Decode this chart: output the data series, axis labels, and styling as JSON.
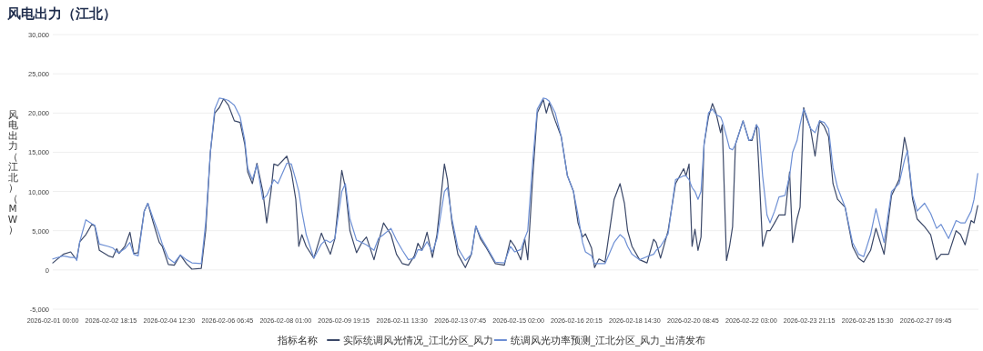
{
  "chart_data": {
    "type": "line",
    "title": "风电出力（江北）",
    "ylabel": "风电出力（江北）（MW）",
    "legend_title": "指标名称",
    "x": [
      "2026-02-01T00:00",
      "2026-02-01T07:36",
      "2026-02-01T13:00",
      "2026-02-01T16:18",
      "2026-02-01T17:24",
      "2026-02-01T19:36",
      "2026-02-02T00:00",
      "2026-02-02T04:18",
      "2026-02-02T06:30",
      "2026-02-02T09:48",
      "2026-02-02T16:18",
      "2026-02-02T19:36",
      "2026-02-02T22:24",
      "2026-02-03T00:00",
      "2026-02-03T04:18",
      "2026-02-03T08:00",
      "2026-02-03T10:48",
      "2026-02-03T14:00",
      "2026-02-03T18:24",
      "2026-02-03T21:00",
      "2026-02-04T01:00",
      "2026-02-04T05:18",
      "2026-02-04T07:30",
      "2026-02-04T11:54",
      "2026-02-04T16:12",
      "2026-02-04T20:36",
      "2026-02-05T01:00",
      "2026-02-05T05:00",
      "2026-02-05T11:48",
      "2026-02-05T15:00",
      "2026-02-05T18:24",
      "2026-02-05T21:36",
      "2026-02-06T00:54",
      "2026-02-06T04:00",
      "2026-02-06T07:30",
      "2026-02-06T11:48",
      "2026-02-06T16:00",
      "2026-02-06T19:24",
      "2026-02-06T21:30",
      "2026-02-07T00:54",
      "2026-02-07T04:12",
      "2026-02-07T08:30",
      "2026-02-07T11:18",
      "2026-02-07T14:24",
      "2026-02-07T16:30",
      "2026-02-07T19:24",
      "2026-02-08T01:54",
      "2026-02-08T05:12",
      "2026-02-08T08:24",
      "2026-02-08T10:36",
      "2026-02-08T12:48",
      "2026-02-08T16:00",
      "2026-02-08T21:30",
      "2026-02-09T03:00",
      "2026-02-09T06:12",
      "2026-02-09T09:30",
      "2026-02-09T12:48",
      "2026-02-09T17:48",
      "2026-02-09T20:24",
      "2026-02-09T23:42",
      "2026-02-10T04:30",
      "2026-02-10T08:24",
      "2026-02-10T11:42",
      "2026-02-10T17:12",
      "2026-02-10T20:24",
      "2026-02-11T00:06",
      "2026-02-11T05:30",
      "2026-02-11T09:30",
      "2026-02-11T13:48",
      "2026-02-11T18:12",
      "2026-02-11T22:30",
      "2026-02-12T01:06",
      "2026-02-12T04:00",
      "2026-02-12T07:42",
      "2026-02-12T11:36",
      "2026-02-12T14:54",
      "2026-02-12T20:18",
      "2026-02-12T22:30",
      "2026-02-13T01:48",
      "2026-02-13T06:06",
      "2026-02-13T11:30",
      "2026-02-13T15:54",
      "2026-02-13T19:06",
      "2026-02-13T22:24",
      "2026-02-14T02:48",
      "2026-02-14T09:18",
      "2026-02-14T15:48",
      "2026-02-14T20:12",
      "2026-02-14T23:24",
      "2026-02-15T03:48",
      "2026-02-15T06:36",
      "2026-02-15T08:48",
      "2026-02-15T12:30",
      "2026-02-15T15:42",
      "2026-02-15T20:06",
      "2026-02-15T22:18",
      "2026-02-16T00:24",
      "2026-02-16T04:48",
      "2026-02-16T09:06",
      "2026-02-16T13:36",
      "2026-02-16T18:00",
      "2026-02-16T21:18",
      "2026-02-17T00:36",
      "2026-02-17T02:42",
      "2026-02-17T07:06",
      "2026-02-17T09:18",
      "2026-02-17T12:30",
      "2026-02-17T16:54",
      "2026-02-17T23:30",
      "2026-02-18T03:48",
      "2026-02-18T07:00",
      "2026-02-18T09:18",
      "2026-02-18T12:30",
      "2026-02-18T18:00",
      "2026-02-18T23:24",
      "2026-02-19T04:12",
      "2026-02-19T06:00",
      "2026-02-19T09:12",
      "2026-02-19T14:42",
      "2026-02-19T20:06",
      "2026-02-20T02:00",
      "2026-02-20T03:42",
      "2026-02-20T05:54",
      "2026-02-20T08:06",
      "2026-02-20T10:12",
      "2026-02-20T12:24",
      "2026-02-20T14:36",
      "2026-02-20T16:48",
      "2026-02-20T20:00",
      "2026-02-20T22:54",
      "2026-02-21T01:30",
      "2026-02-21T04:48",
      "2026-02-21T06:00",
      "2026-02-21T09:06",
      "2026-02-21T11:18",
      "2026-02-21T13:30",
      "2026-02-21T15:36",
      "2026-02-21T21:06",
      "2026-02-22T01:24",
      "2026-02-22T03:36",
      "2026-02-22T06:54",
      "2026-02-22T08:36",
      "2026-02-22T11:18",
      "2026-02-22T14:30",
      "2026-02-22T16:42",
      "2026-02-22T20:00",
      "2026-02-22T23:12",
      "2026-02-23T03:36",
      "2026-02-23T06:54",
      "2026-02-23T09:06",
      "2026-02-23T12:18",
      "2026-02-23T14:30",
      "2026-02-23T17:06",
      "2026-02-23T18:54",
      "2026-02-23T22:06",
      "2026-02-24T01:24",
      "2026-02-24T04:42",
      "2026-02-24T08:00",
      "2026-02-24T11:12",
      "2026-02-24T14:24",
      "2026-02-24T17:42",
      "2026-02-24T23:12",
      "2026-02-25T04:36",
      "2026-02-25T09:00",
      "2026-02-25T12:42",
      "2026-02-25T17:42",
      "2026-02-25T21:36",
      "2026-02-26T03:30",
      "2026-02-26T08:54",
      "2026-02-26T14:24",
      "2026-02-26T18:18",
      "2026-02-26T20:30",
      "2026-02-27T00:12",
      "2026-02-27T03:30",
      "2026-02-27T08:54",
      "2026-02-27T13:18",
      "2026-02-27T17:36",
      "2026-02-27T20:54",
      "2026-02-28T02:18",
      "2026-02-28T07:48",
      "2026-02-28T11:00",
      "2026-02-28T14:18",
      "2026-02-28T18:42",
      "2026-02-28T20:48",
      "2026-02-28T23:30"
    ],
    "series": [
      {
        "name": "实际统调风光情况_江北分区_风力",
        "color": "#3b4868",
        "values": [
          900,
          2000,
          2300,
          1500,
          1400,
          3600,
          4500,
          5800,
          5600,
          2500,
          1800,
          1600,
          2700,
          2100,
          3000,
          4800,
          2100,
          2200,
          7500,
          8500,
          6000,
          3500,
          3000,
          700,
          600,
          1900,
          800,
          100,
          200,
          5000,
          15000,
          20000,
          20700,
          21800,
          21000,
          19000,
          18800,
          16000,
          12500,
          11000,
          13600,
          10000,
          6000,
          10000,
          13500,
          13300,
          14500,
          12500,
          9000,
          3000,
          4500,
          3000,
          1500,
          4700,
          3300,
          2000,
          4000,
          12700,
          10500,
          5000,
          2200,
          3500,
          4200,
          1300,
          3500,
          6000,
          4500,
          2000,
          800,
          600,
          1800,
          3400,
          2500,
          4800,
          1600,
          4500,
          13500,
          11500,
          6000,
          2000,
          300,
          2000,
          5600,
          4000,
          2800,
          800,
          600,
          3800,
          3000,
          1300,
          4000,
          1300,
          12000,
          20000,
          21700,
          20000,
          21300,
          19000,
          17000,
          12000,
          10000,
          6000,
          4200,
          4600,
          2800,
          300,
          1400,
          1000,
          9000,
          11000,
          8500,
          5000,
          3000,
          1300,
          900,
          3900,
          3500,
          1500,
          5000,
          11000,
          12900,
          12000,
          13500,
          3000,
          5200,
          2500,
          4200,
          16000,
          19500,
          21200,
          20000,
          17500,
          18500,
          1200,
          3000,
          5500,
          16000,
          19000,
          16500,
          16500,
          18500,
          13000,
          3000,
          5000,
          5000,
          6000,
          7000,
          7000,
          12500,
          3500,
          6500,
          8000,
          20700,
          19500,
          18000,
          14500,
          19000,
          18300,
          17000,
          11000,
          9000,
          8000,
          3000,
          1500,
          1000,
          2500,
          5300,
          2000,
          9500,
          11500,
          16900,
          15000,
          9000,
          6500,
          5500,
          4500,
          1300,
          2000,
          2000,
          5000,
          4500,
          3200,
          6300,
          6000,
          8200
        ]
      },
      {
        "name": "统调风光功率预测_江北分区_风力_出清发布",
        "color": "#6d8fd4",
        "values": [
          1400,
          1800,
          1600,
          1600,
          1200,
          3600,
          6400,
          5900,
          5700,
          3300,
          3000,
          2800,
          2300,
          2200,
          2700,
          3500,
          2000,
          1800,
          7500,
          8500,
          6500,
          4500,
          3300,
          1500,
          900,
          1900,
          1300,
          900,
          800,
          6000,
          15000,
          20500,
          21900,
          21800,
          21600,
          21000,
          19500,
          16500,
          13000,
          11500,
          13400,
          9000,
          9500,
          10700,
          11500,
          11000,
          13600,
          13500,
          11500,
          10000,
          7500,
          4500,
          1500,
          3300,
          3800,
          3500,
          4000,
          10000,
          11000,
          6500,
          3800,
          3500,
          3200,
          2500,
          4000,
          4500,
          5300,
          3800,
          2500,
          1300,
          1500,
          2600,
          2500,
          3600,
          2300,
          4000,
          10000,
          10500,
          6500,
          2800,
          1200,
          2000,
          5600,
          4300,
          3000,
          1000,
          900,
          3000,
          2300,
          2600,
          4000,
          5000,
          14000,
          20500,
          21900,
          21800,
          21500,
          20000,
          17000,
          12000,
          10000,
          7000,
          3500,
          2300,
          1800,
          800,
          800,
          800,
          3500,
          4500,
          4000,
          3000,
          2000,
          1300,
          1700,
          2000,
          2500,
          3000,
          4600,
          11500,
          12000,
          12000,
          11500,
          10500,
          10000,
          9000,
          10000,
          16000,
          20000,
          20500,
          19800,
          19500,
          19000,
          17000,
          15500,
          15300,
          16000,
          19000,
          16500,
          16700,
          18500,
          18000,
          12000,
          7000,
          6000,
          7500,
          9300,
          9500,
          12000,
          15000,
          16500,
          18500,
          20500,
          19800,
          18000,
          17500,
          19000,
          18800,
          18000,
          13000,
          10500,
          8000,
          3500,
          2000,
          1700,
          4500,
          7800,
          3500,
          10000,
          11000,
          14000,
          15200,
          9500,
          7500,
          8500,
          7200,
          5300,
          5800,
          4000,
          6300,
          6000,
          6000,
          7500,
          9000,
          12300
        ]
      }
    ],
    "xlim": [
      "2026-02-01T00:00",
      "2026-03-01T00:00"
    ],
    "xticks": [
      {
        "value": "2026-02-01T00:00",
        "label": "2026-02-01 00:00"
      },
      {
        "value": "2026-02-02T18:15",
        "label": "2026-02-02 18:15"
      },
      {
        "value": "2026-02-04T12:30",
        "label": "2026-02-04 12:30"
      },
      {
        "value": "2026-02-06T06:45",
        "label": "2026-02-06 06:45"
      },
      {
        "value": "2026-02-08T01:00",
        "label": "2026-02-08 01:00"
      },
      {
        "value": "2026-02-09T19:15",
        "label": "2026-02-09 19:15"
      },
      {
        "value": "2026-02-11T13:30",
        "label": "2026-02-11 13:30"
      },
      {
        "value": "2026-02-13T07:45",
        "label": "2026-02-13 07:45"
      },
      {
        "value": "2026-02-15T02:00",
        "label": "2026-02-15 02:00"
      },
      {
        "value": "2026-02-16T20:15",
        "label": "2026-02-16 20:15"
      },
      {
        "value": "2026-02-18T14:30",
        "label": "2026-02-18 14:30"
      },
      {
        "value": "2026-02-20T08:45",
        "label": "2026-02-20 08:45"
      },
      {
        "value": "2026-02-22T03:00",
        "label": "2026-02-22 03:00"
      },
      {
        "value": "2026-02-23T21:15",
        "label": "2026-02-23 21:15"
      },
      {
        "value": "2026-02-25T15:30",
        "label": "2026-02-25 15:30"
      },
      {
        "value": "2026-02-27T09:45",
        "label": "2026-02-27 09:45"
      }
    ],
    "ylim": [
      -5000,
      30000
    ],
    "yticks": [
      {
        "value": -5000,
        "label": "-5,000"
      },
      0,
      {
        "value": 5000,
        "label": "5,000"
      },
      {
        "value": 10000,
        "label": "10,000"
      },
      {
        "value": 15000,
        "label": "15,000"
      },
      {
        "value": 20000,
        "label": "20,000"
      },
      {
        "value": 25000,
        "label": "25,000"
      },
      {
        "value": 30000,
        "label": "30,000"
      }
    ],
    "grid": "y",
    "legend": "bottom",
    "marker": "none",
    "line_style": "solid"
  }
}
